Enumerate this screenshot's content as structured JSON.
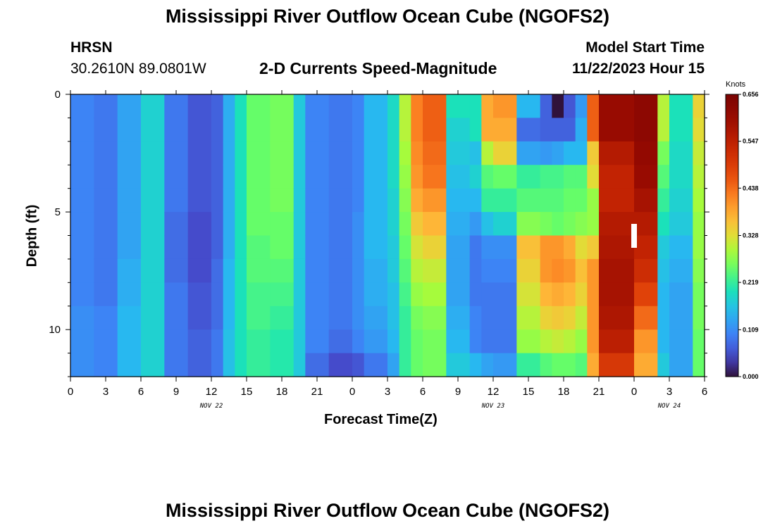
{
  "page": {
    "title": "Mississippi River Outflow Ocean Cube (NGOFS2)",
    "footer_title": "Mississippi River Outflow Ocean Cube (NGOFS2)",
    "station": "HRSN",
    "coords": "30.2610N  89.0801W",
    "subtitle": "2-D Currents Speed-Magnitude",
    "model_start_label": "Model Start Time",
    "model_start_value": "11/22/2023 Hour 15"
  },
  "chart_data": {
    "type": "heatmap",
    "xlabel": "Forecast Time(Z)",
    "ylabel": "Depth (ft)",
    "xlim": [
      0,
      54
    ],
    "ylim": [
      0,
      12
    ],
    "y_inverted": true,
    "x_ticks": [
      0,
      3,
      6,
      9,
      12,
      15,
      18,
      21,
      24,
      27,
      30,
      33,
      36,
      39,
      42,
      45,
      48,
      51,
      54
    ],
    "x_tick_labels": [
      "0",
      "3",
      "6",
      "9",
      "12",
      "15",
      "18",
      "21",
      "0",
      "3",
      "6",
      "9",
      "12",
      "15",
      "18",
      "21",
      "0",
      "3",
      "6"
    ],
    "y_ticks": [
      0,
      5,
      10
    ],
    "y_tick_labels": [
      "0",
      "5",
      "10"
    ],
    "date_labels": [
      {
        "x": 12,
        "text": "NOV 22"
      },
      {
        "x": 36,
        "text": "NOV 23"
      },
      {
        "x": 51,
        "text": "NOV 24"
      }
    ],
    "colorbar": {
      "unit": "Knots",
      "min": 0.0,
      "max": 0.656,
      "ticks": [
        0.0,
        0.109,
        0.219,
        0.328,
        0.438,
        0.547,
        0.656
      ],
      "tick_labels": [
        "0.000",
        "0.109",
        "0.219",
        "0.328",
        "0.438",
        "0.547",
        "0.656"
      ]
    },
    "depth_boundaries": [
      0,
      1,
      2,
      3,
      4,
      5,
      6,
      7,
      8,
      9,
      10,
      11,
      12
    ],
    "columns": [
      {
        "t": 0,
        "values": [
          0.1,
          0.1,
          0.1,
          0.1,
          0.1,
          0.1,
          0.1,
          0.1,
          0.1,
          0.11,
          0.11,
          0.11
        ]
      },
      {
        "t": 2,
        "values": [
          0.09,
          0.09,
          0.09,
          0.09,
          0.09,
          0.09,
          0.09,
          0.09,
          0.09,
          0.1,
          0.1,
          0.1
        ]
      },
      {
        "t": 4,
        "values": [
          0.13,
          0.13,
          0.13,
          0.13,
          0.13,
          0.13,
          0.13,
          0.14,
          0.14,
          0.15,
          0.15,
          0.15
        ]
      },
      {
        "t": 6,
        "values": [
          0.18,
          0.18,
          0.18,
          0.18,
          0.18,
          0.18,
          0.18,
          0.18,
          0.18,
          0.18,
          0.18,
          0.18
        ]
      },
      {
        "t": 8,
        "values": [
          0.09,
          0.09,
          0.09,
          0.09,
          0.09,
          0.08,
          0.08,
          0.08,
          0.09,
          0.09,
          0.09,
          0.09
        ]
      },
      {
        "t": 10,
        "values": [
          0.06,
          0.06,
          0.06,
          0.06,
          0.06,
          0.05,
          0.05,
          0.05,
          0.06,
          0.06,
          0.07,
          0.07
        ]
      },
      {
        "t": 12,
        "values": [
          0.07,
          0.07,
          0.07,
          0.07,
          0.07,
          0.07,
          0.07,
          0.08,
          0.08,
          0.08,
          0.09,
          0.09
        ]
      },
      {
        "t": 13,
        "values": [
          0.14,
          0.14,
          0.14,
          0.14,
          0.14,
          0.14,
          0.14,
          0.15,
          0.15,
          0.15,
          0.16,
          0.16
        ]
      },
      {
        "t": 14,
        "values": [
          0.2,
          0.2,
          0.2,
          0.2,
          0.2,
          0.2,
          0.2,
          0.2,
          0.2,
          0.2,
          0.2,
          0.2
        ]
      },
      {
        "t": 15,
        "values": [
          0.25,
          0.25,
          0.25,
          0.25,
          0.25,
          0.25,
          0.24,
          0.24,
          0.23,
          0.23,
          0.22,
          0.22
        ]
      },
      {
        "t": 17,
        "values": [
          0.26,
          0.26,
          0.26,
          0.26,
          0.26,
          0.25,
          0.25,
          0.24,
          0.23,
          0.22,
          0.21,
          0.21
        ]
      },
      {
        "t": 19,
        "values": [
          0.17,
          0.17,
          0.17,
          0.17,
          0.17,
          0.17,
          0.17,
          0.17,
          0.17,
          0.17,
          0.17,
          0.17
        ]
      },
      {
        "t": 20,
        "values": [
          0.1,
          0.1,
          0.1,
          0.1,
          0.1,
          0.1,
          0.1,
          0.1,
          0.1,
          0.1,
          0.1,
          0.08
        ]
      },
      {
        "t": 22,
        "values": [
          0.09,
          0.09,
          0.09,
          0.09,
          0.09,
          0.09,
          0.09,
          0.09,
          0.09,
          0.09,
          0.08,
          0.05
        ]
      },
      {
        "t": 24,
        "values": [
          0.1,
          0.1,
          0.1,
          0.1,
          0.1,
          0.11,
          0.11,
          0.11,
          0.11,
          0.11,
          0.1,
          0.06
        ]
      },
      {
        "t": 25,
        "values": [
          0.15,
          0.15,
          0.15,
          0.15,
          0.15,
          0.15,
          0.15,
          0.14,
          0.14,
          0.13,
          0.12,
          0.09
        ]
      },
      {
        "t": 27,
        "values": [
          0.19,
          0.19,
          0.19,
          0.19,
          0.18,
          0.18,
          0.17,
          0.17,
          0.16,
          0.16,
          0.15,
          0.13
        ]
      },
      {
        "t": 28,
        "values": [
          0.3,
          0.3,
          0.29,
          0.28,
          0.27,
          0.26,
          0.25,
          0.24,
          0.23,
          0.22,
          0.22,
          0.22
        ]
      },
      {
        "t": 29,
        "values": [
          0.42,
          0.42,
          0.41,
          0.4,
          0.38,
          0.35,
          0.32,
          0.3,
          0.28,
          0.26,
          0.25,
          0.25
        ]
      },
      {
        "t": 30,
        "values": [
          0.45,
          0.45,
          0.44,
          0.43,
          0.4,
          0.37,
          0.34,
          0.31,
          0.29,
          0.27,
          0.26,
          0.26
        ]
      },
      {
        "t": 32,
        "values": [
          0.2,
          0.18,
          0.17,
          0.16,
          0.15,
          0.14,
          0.13,
          0.13,
          0.13,
          0.14,
          0.15,
          0.17
        ]
      },
      {
        "t": 34,
        "values": [
          0.2,
          0.2,
          0.16,
          0.18,
          0.15,
          0.12,
          0.09,
          0.09,
          0.09,
          0.1,
          0.1,
          0.15
        ]
      },
      {
        "t": 35,
        "values": [
          0.38,
          0.38,
          0.3,
          0.24,
          0.22,
          0.16,
          0.11,
          0.1,
          0.09,
          0.09,
          0.09,
          0.13
        ]
      },
      {
        "t": 36,
        "values": [
          0.4,
          0.38,
          0.34,
          0.25,
          0.22,
          0.18,
          0.11,
          0.1,
          0.09,
          0.09,
          0.09,
          0.12
        ]
      },
      {
        "t": 38,
        "values": [
          0.15,
          0.08,
          0.13,
          0.22,
          0.24,
          0.27,
          0.36,
          0.34,
          0.32,
          0.3,
          0.28,
          0.22
        ]
      },
      {
        "t": 40,
        "values": [
          0.07,
          0.07,
          0.12,
          0.23,
          0.24,
          0.26,
          0.4,
          0.4,
          0.37,
          0.34,
          0.3,
          0.24
        ]
      },
      {
        "t": 41,
        "values": [
          0.0,
          0.07,
          0.13,
          0.23,
          0.24,
          0.25,
          0.4,
          0.41,
          0.38,
          0.35,
          0.31,
          0.25
        ]
      },
      {
        "t": 42,
        "values": [
          0.06,
          0.07,
          0.15,
          0.24,
          0.25,
          0.26,
          0.38,
          0.4,
          0.37,
          0.34,
          0.3,
          0.25
        ]
      },
      {
        "t": 43,
        "values": [
          0.12,
          0.14,
          0.15,
          0.24,
          0.25,
          0.27,
          0.33,
          0.36,
          0.34,
          0.31,
          0.28,
          0.24
        ]
      },
      {
        "t": 44,
        "values": [
          0.45,
          0.45,
          0.35,
          0.33,
          0.28,
          0.28,
          0.35,
          0.4,
          0.4,
          0.4,
          0.4,
          0.38
        ]
      },
      {
        "t": 45,
        "values": [
          0.6,
          0.6,
          0.56,
          0.54,
          0.54,
          0.56,
          0.57,
          0.58,
          0.58,
          0.57,
          0.55,
          0.5
        ]
      },
      {
        "t": 48,
        "values": [
          0.62,
          0.62,
          0.61,
          0.6,
          0.58,
          0.56,
          0.54,
          0.52,
          0.48,
          0.44,
          0.4,
          0.38
        ]
      },
      {
        "t": 50,
        "values": [
          0.3,
          0.3,
          0.26,
          0.24,
          0.22,
          0.2,
          0.17,
          0.16,
          0.15,
          0.15,
          0.15,
          0.17
        ]
      },
      {
        "t": 51,
        "values": [
          0.2,
          0.2,
          0.19,
          0.19,
          0.18,
          0.17,
          0.15,
          0.14,
          0.13,
          0.13,
          0.13,
          0.13
        ]
      },
      {
        "t": 53,
        "values": [
          0.34,
          0.33,
          0.31,
          0.3,
          0.29,
          0.28,
          0.28,
          0.27,
          0.26,
          0.26,
          0.25,
          0.25
        ]
      }
    ]
  }
}
